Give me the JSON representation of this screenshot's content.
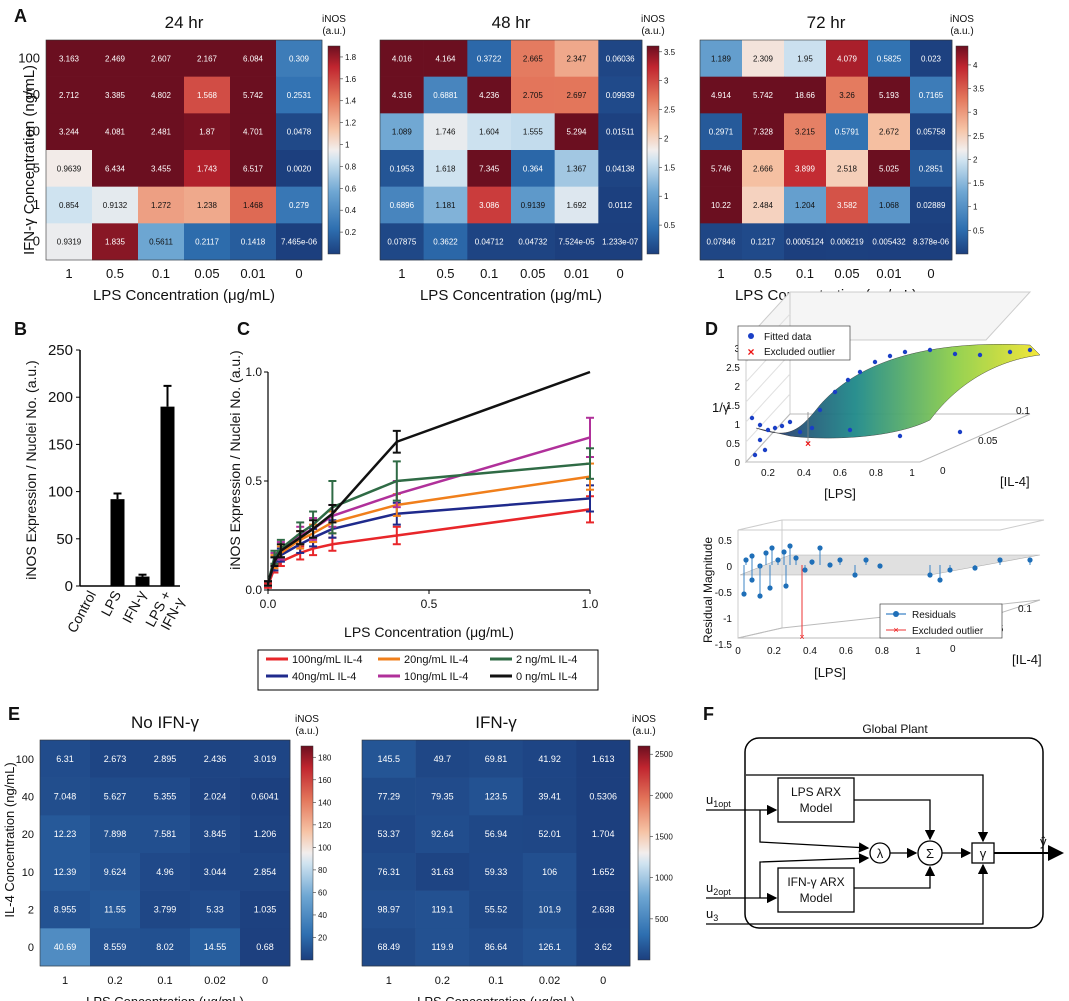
{
  "figure": {
    "panel_labels": [
      "A",
      "B",
      "C",
      "D",
      "E",
      "F"
    ]
  },
  "chart_data": [
    {
      "panel": "A",
      "type": "heatmap",
      "ylabel": "IFN-γ Concentration (ng/mL)",
      "xlabel": "LPS Concentration (μg/mL)",
      "x_categories": [
        "1",
        "0.5",
        "0.1",
        "0.05",
        "0.01",
        "0"
      ],
      "y_categories": [
        "100",
        "50",
        "10",
        "5",
        "1",
        "0"
      ],
      "colorbar_title": [
        "iNOS",
        "(a.u.)"
      ],
      "maps": [
        {
          "title": "24 hr",
          "range": [
            0,
            1.9
          ],
          "colorbar_ticks": [
            "0.2",
            "0.4",
            "0.6",
            "0.8",
            "1",
            "1.2",
            "1.4",
            "1.6",
            "1.8"
          ],
          "cells": [
            [
              "3.163",
              "2.469",
              "2.607",
              "2.167",
              "6.084",
              "0.309"
            ],
            [
              "2.712",
              "3.385",
              "4.802",
              "1.568",
              "5.742",
              "0.2531"
            ],
            [
              "3.244",
              "4.081",
              "2.481",
              "1.87",
              "4.701",
              "0.0478"
            ],
            [
              "0.9639",
              "6.434",
              "3.455",
              "1.743",
              "6.517",
              "0.0020"
            ],
            [
              "0.854",
              "0.9132",
              "1.272",
              "1.238",
              "1.468",
              "0.279"
            ],
            [
              "0.9319",
              "1.835",
              "0.5611",
              "0.2117",
              "0.1418",
              "7.465e-06"
            ]
          ]
        },
        {
          "title": "48 hr",
          "range": [
            0,
            3.6
          ],
          "colorbar_ticks": [
            "0.5",
            "1",
            "1.5",
            "2",
            "2.5",
            "3",
            "3.5"
          ],
          "cells": [
            [
              "4.016",
              "4.164",
              "0.3722",
              "2.665",
              "2.347",
              "0.06036"
            ],
            [
              "4.316",
              "0.6881",
              "4.236",
              "2.705",
              "2.697",
              "0.09939"
            ],
            [
              "1.089",
              "1.746",
              "1.604",
              "1.555",
              "5.294",
              "0.01511"
            ],
            [
              "0.1953",
              "1.618",
              "7.345",
              "0.364",
              "1.367",
              "0.04138"
            ],
            [
              "0.6896",
              "1.181",
              "3.086",
              "0.9139",
              "1.692",
              "0.0112"
            ],
            [
              "0.07875",
              "0.3622",
              "0.04712",
              "0.04732",
              "7.524e-05",
              "1.233e-07"
            ]
          ]
        },
        {
          "title": "72 hr",
          "range": [
            0,
            4.4
          ],
          "colorbar_ticks": [
            "0.5",
            "1",
            "1.5",
            "2",
            "2.5",
            "3",
            "3.5",
            "4"
          ],
          "cells": [
            [
              "1.189",
              "2.309",
              "1.95",
              "4.079",
              "0.5825",
              "0.023"
            ],
            [
              "4.914",
              "5.742",
              "18.66",
              "3.26",
              "5.193",
              "0.7165"
            ],
            [
              "0.2971",
              "7.328",
              "3.215",
              "0.5791",
              "2.672",
              "0.05758"
            ],
            [
              "5.746",
              "2.666",
              "3.899",
              "2.518",
              "5.025",
              "0.2851"
            ],
            [
              "10.22",
              "2.484",
              "1.204",
              "3.582",
              "1.068",
              "0.02889"
            ],
            [
              "0.07846",
              "0.1217",
              "0.0005124",
              "0.006219",
              "0.005432",
              "8.378e-06"
            ]
          ]
        }
      ]
    },
    {
      "panel": "B",
      "type": "bar",
      "ylabel": "iNOS Expression / Nuclei No. (a.u.)",
      "categories": [
        "Control",
        "LPS",
        "IFN-γ",
        "LPS +\nIFN-γ"
      ],
      "values": [
        0,
        92,
        10,
        190
      ],
      "errors": [
        0,
        6,
        2,
        22
      ],
      "ylim": [
        0,
        250
      ],
      "yticks": [
        "0",
        "50",
        "100",
        "150",
        "200",
        "250"
      ]
    },
    {
      "panel": "C",
      "type": "line",
      "xlabel": "LPS Concentration (μg/mL)",
      "ylabel": "iNOS Expression / Nuclei No. (a.u.)",
      "xlim": [
        0,
        1
      ],
      "ylim": [
        0,
        1
      ],
      "xticks": [
        "0.0",
        "0.5",
        "1.0"
      ],
      "yticks": [
        "0.0",
        "0.5",
        "1.0"
      ],
      "x": [
        0,
        0.02,
        0.04,
        0.1,
        0.14,
        0.2,
        0.4,
        1.0
      ],
      "series": [
        {
          "name": "100ng/mL IL-4",
          "color": "#e8262a",
          "values": [
            0.02,
            0.1,
            0.13,
            0.17,
            0.19,
            0.21,
            0.25,
            0.37
          ],
          "errors": [
            0.01,
            0.02,
            0.02,
            0.03,
            0.03,
            0.03,
            0.04,
            0.06
          ]
        },
        {
          "name": "40ng/mL IL-4",
          "color": "#1f2a8c",
          "values": [
            0.03,
            0.12,
            0.16,
            0.21,
            0.24,
            0.28,
            0.35,
            0.42
          ],
          "errors": [
            0.01,
            0.03,
            0.03,
            0.04,
            0.04,
            0.04,
            0.05,
            0.06
          ]
        },
        {
          "name": "20ng/mL IL-4",
          "color": "#f07f1b",
          "values": [
            0.03,
            0.13,
            0.17,
            0.23,
            0.26,
            0.31,
            0.39,
            0.52
          ],
          "errors": [
            0.01,
            0.03,
            0.03,
            0.04,
            0.04,
            0.05,
            0.05,
            0.06
          ]
        },
        {
          "name": "10ng/mL IL-4",
          "color": "#b0309a",
          "values": [
            0.03,
            0.14,
            0.18,
            0.25,
            0.28,
            0.34,
            0.44,
            0.7
          ],
          "errors": [
            0.01,
            0.03,
            0.04,
            0.04,
            0.05,
            0.05,
            0.06,
            0.09
          ]
        },
        {
          "name": "2 ng/mL IL-4",
          "color": "#2f6b45",
          "values": [
            0.03,
            0.15,
            0.19,
            0.26,
            0.3,
            0.38,
            0.5,
            0.58
          ],
          "errors": [
            0.01,
            0.03,
            0.04,
            0.05,
            0.06,
            0.12,
            0.09,
            0.07
          ]
        },
        {
          "name": "0 ng/mL IL-4",
          "color": "#111111",
          "values": [
            0.03,
            0.13,
            0.18,
            0.24,
            0.28,
            0.35,
            0.68,
            1.0
          ],
          "errors": [
            0.01,
            0.02,
            0.03,
            0.03,
            0.04,
            0.04,
            0.05,
            0.0
          ]
        }
      ]
    },
    {
      "panel": "D",
      "type": "scatter",
      "top": {
        "zlabel": "1/γ",
        "xlabel": "[LPS]",
        "ylabel": "[IL-4]",
        "zticks": [
          "0",
          "0.5",
          "1",
          "1.5",
          "2",
          "2.5",
          "3"
        ],
        "xticks": [
          "0.2",
          "0.4",
          "0.6",
          "0.8",
          "1"
        ],
        "yticks": [
          "0",
          "0.05",
          "0.1"
        ],
        "legend": [
          "Fitted data",
          "Excluded outlier"
        ]
      },
      "bottom": {
        "zlabel": "Residual Magnitude",
        "xlabel": "[LPS]",
        "ylabel": "[IL-4]",
        "zticks": [
          "0.5",
          "0",
          "-0.5",
          "-1",
          "-1.5"
        ],
        "xticks": [
          "0",
          "0.2",
          "0.4",
          "0.6",
          "0.8",
          "1"
        ],
        "yticks": [
          "0",
          "0.05",
          "0.1"
        ],
        "legend": [
          "Residuals",
          "Excluded outlier"
        ]
      }
    },
    {
      "panel": "E",
      "type": "heatmap",
      "ylabel": "IL-4 Concentration (ng/mL)",
      "xlabel": "LPS Concentration (μg/mL)",
      "x_categories": [
        "1",
        "0.2",
        "0.1",
        "0.02",
        "0"
      ],
      "y_categories": [
        "100",
        "40",
        "20",
        "10",
        "2",
        "0"
      ],
      "colorbar_title": [
        "iNOS",
        "(a.u.)"
      ],
      "maps": [
        {
          "title": "No IFN-γ",
          "range": [
            0,
            190
          ],
          "colorbar_ticks": [
            "20",
            "40",
            "60",
            "80",
            "100",
            "120",
            "140",
            "160",
            "180"
          ],
          "cells": [
            [
              "6.31",
              "2.673",
              "2.895",
              "2.436",
              "3.019"
            ],
            [
              "7.048",
              "5.627",
              "5.355",
              "2.024",
              "0.6041"
            ],
            [
              "12.23",
              "7.898",
              "7.581",
              "3.845",
              "1.206"
            ],
            [
              "12.39",
              "9.624",
              "4.96",
              "3.044",
              "2.854"
            ],
            [
              "8.955",
              "11.55",
              "3.799",
              "5.33",
              "1.035"
            ],
            [
              "40.69",
              "8.559",
              "8.02",
              "14.55",
              "0.68"
            ]
          ]
        },
        {
          "title": "IFN-γ",
          "range": [
            0,
            2600
          ],
          "colorbar_ticks": [
            "500",
            "1000",
            "1500",
            "2000",
            "2500"
          ],
          "cells": [
            [
              "145.5",
              "49.7",
              "69.81",
              "41.92",
              "1.613"
            ],
            [
              "77.29",
              "79.35",
              "123.5",
              "39.41",
              "0.5306"
            ],
            [
              "53.37",
              "92.64",
              "56.94",
              "52.01",
              "1.704"
            ],
            [
              "76.31",
              "31.63",
              "59.33",
              "106",
              "1.652"
            ],
            [
              "98.97",
              "119.1",
              "55.52",
              "101.9",
              "2.638"
            ],
            [
              "68.49",
              "119.9",
              "86.64",
              "126.1",
              "3.62"
            ]
          ]
        }
      ]
    }
  ],
  "diagram_F": {
    "title": "Global Plant",
    "block_lps": [
      "LPS ARX",
      "Model"
    ],
    "block_ifn": [
      "IFN-γ ARX",
      "Model"
    ],
    "lambda": "λ",
    "sigma": "Σ",
    "gamma": "γ",
    "u1": "u",
    "u1_sub": "1opt",
    "u2": "u",
    "u2_sub": "2opt",
    "u3": "u",
    "u3_sub": "3",
    "output": "ŷ"
  }
}
